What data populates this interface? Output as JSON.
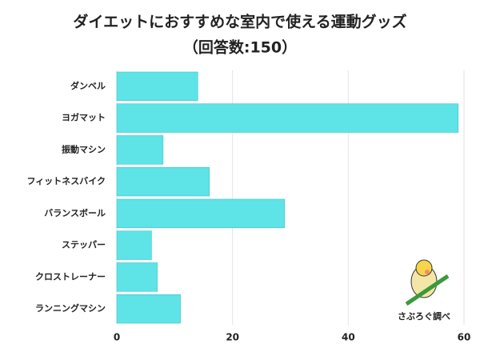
{
  "chart_data": {
    "type": "bar",
    "orientation": "horizontal",
    "title": "ダイエットにおすすめな室内で使える運動グッズ",
    "subtitle": "（回答数:150）",
    "categories": [
      "ダンベル",
      "ヨガマット",
      "振動マシン",
      "フィットネスバイク",
      "バランスボール",
      "ステッパー",
      "クロストレーナー",
      "ランニングマシン"
    ],
    "values": [
      14,
      59,
      8,
      16,
      29,
      6,
      7,
      11
    ],
    "color": "#5ee3e6",
    "xlim": [
      0,
      60
    ],
    "xticks": [
      0,
      20,
      40,
      60
    ],
    "grid": true,
    "source": "さぶろぐ調べ"
  }
}
